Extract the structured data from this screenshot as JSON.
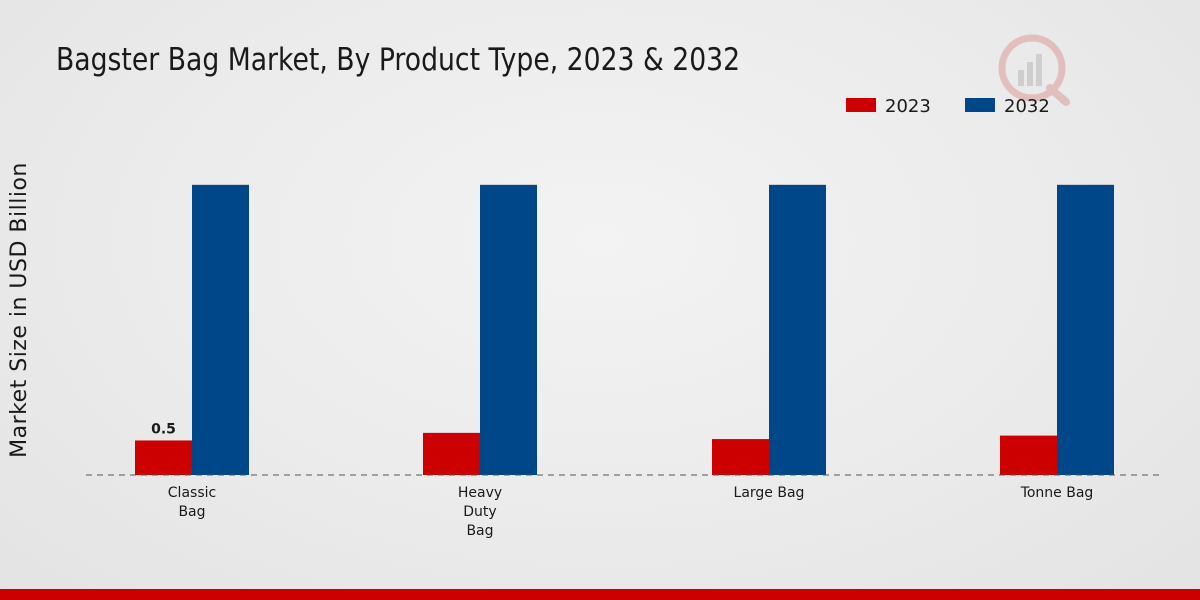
{
  "chart_data": {
    "type": "bar",
    "title": "Bagster Bag Market, By Product Type, 2023 & 2032",
    "xlabel": "",
    "ylabel": "Market Size in USD Billion",
    "categories": [
      "Classic\nBag",
      "Heavy\nDuty\nBag",
      "Large Bag",
      "Tonne Bag"
    ],
    "series": [
      {
        "name": "2023",
        "color": "#cc0000",
        "values": [
          0.5,
          0.61,
          0.52,
          0.57
        ]
      },
      {
        "name": "2032",
        "color": "#00478a",
        "values": [
          4.2,
          4.2,
          4.2,
          4.2
        ]
      }
    ],
    "data_labels": [
      {
        "series": 0,
        "category": 0,
        "text": "0.5"
      }
    ],
    "ylim": [
      0,
      5.5
    ],
    "grid": false,
    "legend_position": "top-right",
    "baseline_style": "dashed"
  },
  "footer": {
    "bar_color": "#cc0000"
  }
}
